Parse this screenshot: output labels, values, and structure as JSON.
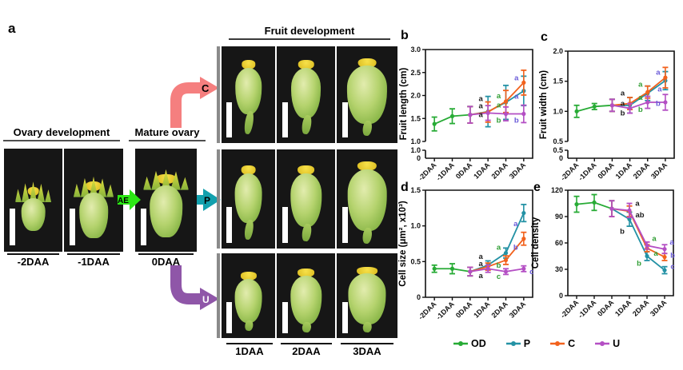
{
  "figure": {
    "panel_labels": {
      "a": "a",
      "b": "b",
      "c": "c",
      "d": "d",
      "e": "e"
    }
  },
  "panel_a": {
    "sections": {
      "ovary_development": {
        "title": "Ovary development",
        "photo_labels": [
          "-2DAA",
          "-1DAA"
        ]
      },
      "mature_ovary": {
        "title": "Mature ovary",
        "photo_labels": [
          "0DAA"
        ]
      },
      "fruit_development": {
        "title": "Fruit development",
        "column_labels": [
          "1DAA",
          "2DAA",
          "3DAA"
        ]
      }
    },
    "arrows": {
      "ae": {
        "label": "AE",
        "color": "#2ce815",
        "text_color": "#000000"
      },
      "c": {
        "label": "C",
        "color": "#f57f7f",
        "text_color": "#000000"
      },
      "p": {
        "label": "P",
        "color": "#12a0ad",
        "text_color": "#000000"
      },
      "u": {
        "label": "U",
        "color": "#8f56a8",
        "text_color": "#ffffff"
      }
    }
  },
  "legend": {
    "items": [
      {
        "label": "OD",
        "color": "#27ab35"
      },
      {
        "label": "P",
        "color": "#2492a5"
      },
      {
        "label": "C",
        "color": "#f2621d"
      },
      {
        "label": "U",
        "color": "#b44fc4"
      }
    ]
  },
  "chart_data": [
    {
      "id": "b",
      "type": "line",
      "ylabel": "Fruit length (cm)",
      "categories": [
        "-2DAA",
        "-1DAA",
        "0DAA",
        "1DAA",
        "2DAA",
        "3DAA"
      ],
      "ylim": [
        1.0,
        3.0
      ],
      "yticks": [
        {
          "v": 3.0,
          "label": "3.0"
        },
        {
          "v": 2.5,
          "label": "2.5"
        },
        {
          "v": 2.0,
          "label": "2.0"
        },
        {
          "v": 1.5,
          "label": "1.5"
        },
        {
          "v": 1.0,
          "label": "1.0"
        }
      ],
      "axis_break_labels": [
        "1.0",
        "0"
      ],
      "series": [
        {
          "name": "OD",
          "values": [
            1.38,
            1.55,
            1.58,
            null,
            null,
            null
          ],
          "errors": [
            0.15,
            0.16,
            0.18,
            null,
            null,
            null
          ]
        },
        {
          "name": "P",
          "values": [
            null,
            null,
            1.58,
            1.65,
            1.85,
            2.1
          ],
          "errors": [
            null,
            null,
            0.18,
            0.33,
            0.37,
            0.32
          ]
        },
        {
          "name": "C",
          "values": [
            null,
            null,
            1.58,
            1.64,
            1.87,
            2.28
          ],
          "errors": [
            null,
            null,
            0.18,
            0.22,
            0.24,
            0.27
          ]
        },
        {
          "name": "U",
          "values": [
            null,
            null,
            1.58,
            1.62,
            1.6,
            1.6
          ],
          "errors": [
            null,
            null,
            0.18,
            0.16,
            0.15,
            0.19
          ]
        }
      ],
      "sig_letters": [
        {
          "x": 3,
          "y": 1.93,
          "text": "a",
          "color": "#1a1a1a",
          "dx": -9
        },
        {
          "x": 3,
          "y": 1.77,
          "text": "a",
          "color": "#1a1a1a",
          "dx": -9
        },
        {
          "x": 3,
          "y": 1.58,
          "text": "a",
          "color": "#1a1a1a",
          "dx": -9
        },
        {
          "x": 4,
          "y": 1.99,
          "text": "a",
          "color": "#2f9e33",
          "dx": -9
        },
        {
          "x": 4,
          "y": 1.79,
          "text": "a",
          "color": "#2f9e33",
          "dx": -9
        },
        {
          "x": 4,
          "y": 1.46,
          "text": "b",
          "color": "#2f9e33",
          "dx": -9
        },
        {
          "x": 5,
          "y": 2.38,
          "text": "a",
          "color": "#6a5ad8",
          "dx": -9
        },
        {
          "x": 5,
          "y": 1.98,
          "text": "a",
          "color": "#6a5ad8",
          "dx": -9
        },
        {
          "x": 5,
          "y": 1.46,
          "text": "b",
          "color": "#6a5ad8",
          "dx": -9
        }
      ]
    },
    {
      "id": "c",
      "type": "line",
      "ylabel": "Fruit width (cm)",
      "categories": [
        "-2DAA",
        "-1DAA",
        "0DAA",
        "1DAA",
        "2DAA",
        "3DAA"
      ],
      "ylim": [
        0.5,
        2.0
      ],
      "yticks": [
        {
          "v": 2.0,
          "label": "2.0"
        },
        {
          "v": 1.5,
          "label": "1.5"
        },
        {
          "v": 1.0,
          "label": "1.0"
        },
        {
          "v": 0.5,
          "label": "0.5"
        }
      ],
      "axis_break_labels": [
        "0.5",
        "0"
      ],
      "series": [
        {
          "name": "OD",
          "values": [
            1.0,
            1.08,
            1.1,
            null,
            null,
            null
          ],
          "errors": [
            0.1,
            0.05,
            0.1,
            null,
            null,
            null
          ]
        },
        {
          "name": "P",
          "values": [
            null,
            null,
            1.1,
            1.1,
            1.3,
            1.51
          ],
          "errors": [
            null,
            null,
            0.1,
            0.13,
            0.12,
            0.15
          ]
        },
        {
          "name": "C",
          "values": [
            null,
            null,
            1.1,
            1.13,
            1.32,
            1.56
          ],
          "errors": [
            null,
            null,
            0.1,
            0.1,
            0.1,
            0.17
          ]
        },
        {
          "name": "U",
          "values": [
            null,
            null,
            1.1,
            1.05,
            1.15,
            1.15
          ],
          "errors": [
            null,
            null,
            0.1,
            0.08,
            0.1,
            0.13
          ]
        }
      ],
      "sig_letters": [
        {
          "x": 3,
          "y": 1.3,
          "text": "a",
          "color": "#1a1a1a",
          "dx": -9
        },
        {
          "x": 3,
          "y": 1.13,
          "text": "a",
          "color": "#1a1a1a",
          "dx": -9
        },
        {
          "x": 3,
          "y": 0.97,
          "text": "b",
          "color": "#1a1a1a",
          "dx": -9
        },
        {
          "x": 4,
          "y": 1.45,
          "text": "a",
          "color": "#2f9e33",
          "dx": -9
        },
        {
          "x": 4,
          "y": 1.23,
          "text": "a",
          "color": "#2f9e33",
          "dx": -9
        },
        {
          "x": 4,
          "y": 1.03,
          "text": "b",
          "color": "#2f9e33",
          "dx": -9
        },
        {
          "x": 5,
          "y": 1.65,
          "text": "a",
          "color": "#6a5ad8",
          "dx": -9
        },
        {
          "x": 5,
          "y": 1.37,
          "text": "a",
          "color": "#6a5ad8",
          "dx": -7
        },
        {
          "x": 5,
          "y": 1.13,
          "text": "b",
          "color": "#6a5ad8",
          "dx": -9
        }
      ]
    },
    {
      "id": "d",
      "type": "line",
      "ylabel": "Cell size (μm², x10³)",
      "categories": [
        "-2DAA",
        "-1DAA",
        "0DAA",
        "1DAA",
        "2DAA",
        "3DAA"
      ],
      "ylim": [
        0,
        1.5
      ],
      "yticks": [
        {
          "v": 1.5,
          "label": "1.5"
        },
        {
          "v": 1.0,
          "label": "1.0"
        },
        {
          "v": 0.5,
          "label": "0.5"
        },
        {
          "v": 0,
          "label": "0"
        }
      ],
      "series": [
        {
          "name": "OD",
          "values": [
            0.4,
            0.4,
            0.36,
            null,
            null,
            null
          ],
          "errors": [
            0.05,
            0.07,
            0.06,
            null,
            null,
            null
          ]
        },
        {
          "name": "P",
          "values": [
            null,
            null,
            0.36,
            0.45,
            0.62,
            1.18
          ],
          "errors": [
            null,
            null,
            0.06,
            0.06,
            0.07,
            0.12
          ]
        },
        {
          "name": "C",
          "values": [
            null,
            null,
            0.36,
            0.43,
            0.52,
            0.82
          ],
          "errors": [
            null,
            null,
            0.06,
            0.05,
            0.06,
            0.09
          ]
        },
        {
          "name": "U",
          "values": [
            null,
            null,
            0.36,
            0.4,
            0.36,
            0.4
          ],
          "errors": [
            null,
            null,
            0.06,
            0.05,
            0.04,
            0.04
          ]
        }
      ],
      "sig_letters": [
        {
          "x": 3,
          "y": 0.57,
          "text": "a",
          "color": "#1a1a1a",
          "dx": -9
        },
        {
          "x": 3,
          "y": 0.47,
          "text": "a",
          "color": "#1a1a1a",
          "dx": -9
        },
        {
          "x": 3,
          "y": 0.3,
          "text": "a",
          "color": "#1a1a1a",
          "dx": -9
        },
        {
          "x": 4,
          "y": 0.7,
          "text": "a",
          "color": "#2f9e33",
          "dx": -9
        },
        {
          "x": 4,
          "y": 0.45,
          "text": "b",
          "color": "#2f9e33",
          "dx": -9
        },
        {
          "x": 4,
          "y": 0.29,
          "text": "c",
          "color": "#2f9e33",
          "dx": -9
        },
        {
          "x": 5,
          "y": 1.03,
          "text": "a",
          "color": "#6a5ad8",
          "dx": -10
        },
        {
          "x": 5,
          "y": 0.7,
          "text": "b",
          "color": "#6a5ad8",
          "dx": -10
        },
        {
          "x": 5,
          "y": 0.36,
          "text": "c",
          "color": "#6a5ad8",
          "dx": 10
        }
      ]
    },
    {
      "id": "e",
      "type": "line",
      "ylabel": "Cell density",
      "categories": [
        "-2DAA",
        "-1DAA",
        "0DAA",
        "1DAA",
        "2DAA",
        "3DAA"
      ],
      "ylim": [
        0,
        120
      ],
      "yticks": [
        {
          "v": 120,
          "label": "120"
        },
        {
          "v": 90,
          "label": "90"
        },
        {
          "v": 60,
          "label": "60"
        },
        {
          "v": 30,
          "label": "30"
        },
        {
          "v": 0,
          "label": "0"
        }
      ],
      "series": [
        {
          "name": "OD",
          "values": [
            104,
            106,
            99,
            null,
            null,
            null
          ],
          "errors": [
            9,
            9,
            9,
            null,
            null,
            null
          ]
        },
        {
          "name": "P",
          "values": [
            null,
            null,
            99,
            87,
            45,
            29
          ],
          "errors": [
            null,
            null,
            9,
            8,
            5,
            4
          ]
        },
        {
          "name": "C",
          "values": [
            null,
            null,
            99,
            96,
            54,
            44
          ],
          "errors": [
            null,
            null,
            9,
            6,
            4,
            4
          ]
        },
        {
          "name": "U",
          "values": [
            null,
            null,
            99,
            97,
            57,
            53
          ],
          "errors": [
            null,
            null,
            9,
            8,
            4,
            5
          ]
        }
      ],
      "sig_letters": [
        {
          "x": 3,
          "y": 105,
          "text": "a",
          "color": "#1a1a1a",
          "dx": 10
        },
        {
          "x": 3,
          "y": 92,
          "text": "ab",
          "color": "#1a1a1a",
          "dx": 13
        },
        {
          "x": 3,
          "y": 73,
          "text": "b",
          "color": "#1a1a1a",
          "dx": -9
        },
        {
          "x": 4,
          "y": 65,
          "text": "a",
          "color": "#2f9e33",
          "dx": 9
        },
        {
          "x": 4,
          "y": 48,
          "text": "a",
          "color": "#2f9e33",
          "dx": 11
        },
        {
          "x": 4,
          "y": 37,
          "text": "b",
          "color": "#2f9e33",
          "dx": -10
        },
        {
          "x": 5,
          "y": 61,
          "text": "a",
          "color": "#6a5ad8",
          "dx": 9
        },
        {
          "x": 5,
          "y": 46,
          "text": "b",
          "color": "#6a5ad8",
          "dx": 10
        },
        {
          "x": 5,
          "y": 33,
          "text": "c",
          "color": "#6a5ad8",
          "dx": 10
        }
      ]
    }
  ]
}
